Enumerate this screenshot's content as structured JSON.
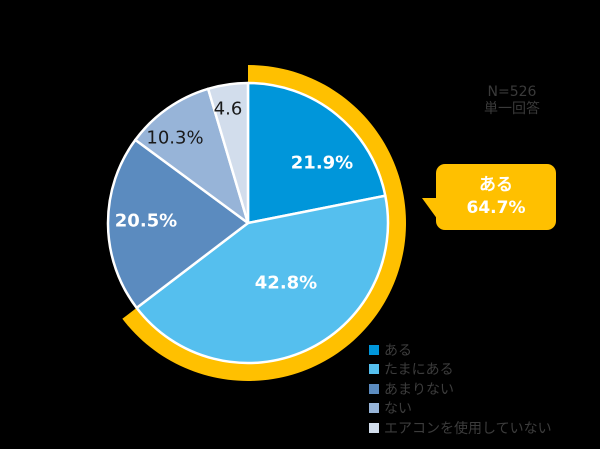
{
  "chart_data": {
    "type": "pie",
    "title": "",
    "n_label": "N=526",
    "answer_type": "単一回答",
    "start_angle_deg": 0,
    "direction": "clockwise",
    "slices": [
      {
        "label": "ある",
        "value": 21.9,
        "display": "21.9%",
        "color": "#0096DA",
        "label_color": "#ffffff",
        "label_bold": true
      },
      {
        "label": "たまにある",
        "value": 42.8,
        "display": "42.8%",
        "color": "#55BFEE",
        "label_color": "#ffffff",
        "label_bold": true
      },
      {
        "label": "あまりない",
        "value": 20.5,
        "display": "20.5%",
        "color": "#5B8BBF",
        "label_color": "#ffffff",
        "label_bold": true
      },
      {
        "label": "ない",
        "value": 10.3,
        "display": "10.3%",
        "color": "#97B4D8",
        "label_color": "#1a1a1a",
        "label_bold": false
      },
      {
        "label": "エアコンを使用していない",
        "value": 4.6,
        "display": "4.6",
        "color": "#D2DDEC",
        "label_color": "#1a1a1a",
        "label_bold": false
      }
    ],
    "highlight": {
      "label": "ある",
      "value_display": "64.7%",
      "covers_slices": [
        "ある",
        "たまにある"
      ],
      "color": "#FFC000"
    },
    "legend": {
      "position": "bottom-right",
      "entries": [
        "ある",
        "たまにある",
        "あまりない",
        "ない",
        "エアコンを使用していない"
      ]
    }
  },
  "header": {
    "n": "N=526",
    "answer_type": "単一回答"
  },
  "callout": {
    "line1": "ある",
    "line2": "64.7%"
  }
}
